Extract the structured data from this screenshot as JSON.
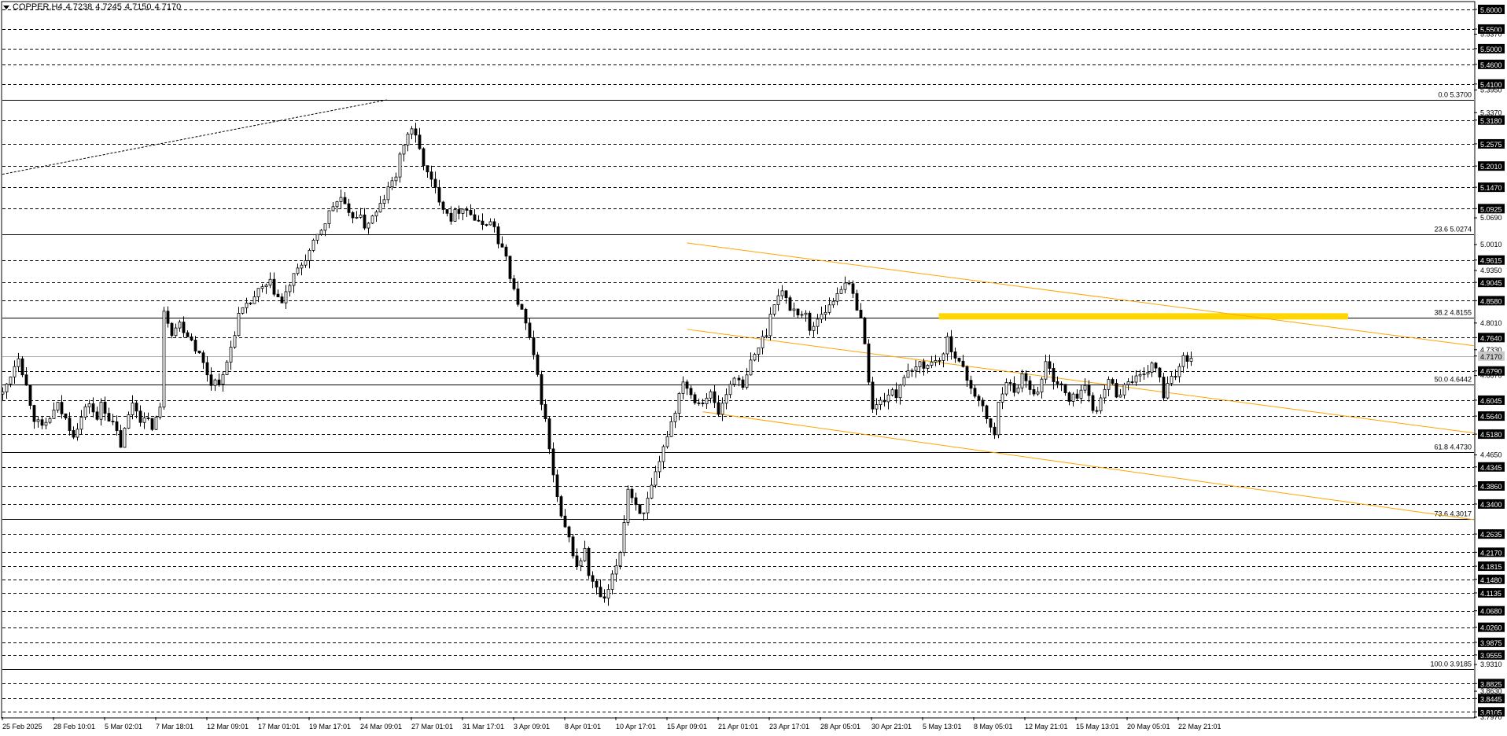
{
  "header": {
    "symbol": "COPPER,H4",
    "open": "4.7238",
    "high": "4.7245",
    "low": "4.7150",
    "close": "4.7170"
  },
  "chart_data": {
    "type": "candlestick",
    "symbol": "COPPER",
    "timeframe": "H4",
    "ylim": [
      3.797,
      5.618
    ],
    "grid": "dashed horizontal",
    "colors": {
      "candle": "#000000",
      "trendline": "#ffa500",
      "zone": "#ffd700",
      "fib": "#000000"
    },
    "price_labels": [
      "5.6000",
      "5.5500",
      "5.5370",
      "5.5000",
      "5.4600",
      "5.4100",
      "5.3950",
      "5.3370",
      "5.3180",
      "5.2575",
      "5.2010",
      "5.1470",
      "5.0925",
      "5.0690",
      "5.0010",
      "4.9615",
      "4.9350",
      "4.9045",
      "4.8580",
      "4.8010",
      "4.7640",
      "4.7330",
      "4.7170",
      "4.6790",
      "4.6670",
      "4.6045",
      "4.5640",
      "4.5180",
      "4.4650",
      "4.4345",
      "4.3860",
      "4.3400",
      "4.2635",
      "4.2170",
      "4.1815",
      "4.1480",
      "4.1135",
      "4.0680",
      "4.0260",
      "3.9875",
      "3.9555",
      "3.9310",
      "3.8825",
      "3.8630",
      "3.8445",
      "3.8105",
      "3.7970"
    ],
    "grid_levels": [
      5.6,
      5.55,
      5.5,
      5.46,
      5.41,
      5.318,
      5.2575,
      5.201,
      5.147,
      5.0925,
      4.9615,
      4.9045,
      4.858,
      4.764,
      4.679,
      4.6045,
      4.564,
      4.518,
      4.4345,
      4.386,
      4.34,
      4.2635,
      4.217,
      4.1815,
      4.148,
      4.1135,
      4.068,
      4.026,
      3.9875,
      3.9555,
      3.8825,
      3.8445,
      3.8105
    ],
    "current_price": {
      "label": "4.7170",
      "value": 4.717
    },
    "fibonacci": [
      {
        "label": "0.0 5.3700",
        "value": 5.37
      },
      {
        "label": "23.6 5.0274",
        "value": 5.0274
      },
      {
        "label": "38.2 4.8155",
        "value": 4.8155
      },
      {
        "label": "50.0 4.6442",
        "value": 4.6442
      },
      {
        "label": "61.8 4.4730",
        "value": 4.473
      },
      {
        "label": "73.6 4.3017",
        "value": 4.3017
      },
      {
        "label": "100.0 3.9185",
        "value": 3.9185
      }
    ],
    "x_ticks": [
      "25 Feb 2025",
      "28 Feb 10:01",
      "5 Mar 02:01",
      "7 Mar 18:01",
      "12 Mar 09:01",
      "17 Mar 01:01",
      "19 Mar 17:01",
      "24 Mar 09:01",
      "27 Mar 01:01",
      "31 Mar 17:01",
      "3 Apr 09:01",
      "8 Apr 01:01",
      "10 Apr 17:01",
      "15 Apr 09:01",
      "21 Apr 01:01",
      "23 Apr 17:01",
      "28 Apr 05:01",
      "30 Apr 21:01",
      "5 May 13:01",
      "8 May 05:01",
      "12 May 21:01",
      "15 May 13:01",
      "20 May 05:01",
      "22 May 21:01"
    ],
    "price_path": [
      [
        0,
        4.62
      ],
      [
        4,
        4.72
      ],
      [
        8,
        4.56
      ],
      [
        10,
        4.53
      ],
      [
        14,
        4.59
      ],
      [
        18,
        4.52
      ],
      [
        22,
        4.6
      ],
      [
        24,
        4.55
      ],
      [
        25,
        4.6
      ],
      [
        27,
        4.56
      ],
      [
        29,
        4.52
      ],
      [
        30,
        4.49
      ],
      [
        33,
        4.6
      ],
      [
        35,
        4.56
      ],
      [
        38,
        4.54
      ],
      [
        40,
        4.58
      ],
      [
        41,
        4.84
      ],
      [
        43,
        4.78
      ],
      [
        45,
        4.8
      ],
      [
        48,
        4.76
      ],
      [
        50,
        4.72
      ],
      [
        53,
        4.65
      ],
      [
        56,
        4.66
      ],
      [
        58,
        4.74
      ],
      [
        60,
        4.82
      ],
      [
        62,
        4.84
      ],
      [
        65,
        4.88
      ],
      [
        68,
        4.9
      ],
      [
        71,
        4.85
      ],
      [
        73,
        4.9
      ],
      [
        76,
        4.95
      ],
      [
        79,
        5.0
      ],
      [
        82,
        5.06
      ],
      [
        84,
        5.1
      ],
      [
        86,
        5.12
      ],
      [
        88,
        5.07
      ],
      [
        90,
        5.08
      ],
      [
        92,
        5.05
      ],
      [
        95,
        5.08
      ],
      [
        97,
        5.12
      ],
      [
        100,
        5.18
      ],
      [
        102,
        5.26
      ],
      [
        104,
        5.3
      ],
      [
        106,
        5.24
      ],
      [
        108,
        5.18
      ],
      [
        110,
        5.14
      ],
      [
        112,
        5.1
      ],
      [
        114,
        5.07
      ],
      [
        117,
        5.1
      ],
      [
        119,
        5.08
      ],
      [
        121,
        5.05
      ],
      [
        123,
        5.06
      ],
      [
        125,
        5.05
      ],
      [
        126,
        5.0
      ],
      [
        128,
        4.97
      ],
      [
        130,
        4.88
      ],
      [
        132,
        4.83
      ],
      [
        134,
        4.76
      ],
      [
        136,
        4.66
      ],
      [
        138,
        4.55
      ],
      [
        140,
        4.41
      ],
      [
        142,
        4.3
      ],
      [
        144,
        4.25
      ],
      [
        146,
        4.18
      ],
      [
        148,
        4.22
      ],
      [
        149,
        4.16
      ],
      [
        151,
        4.12
      ],
      [
        153,
        4.09
      ],
      [
        155,
        4.15
      ],
      [
        157,
        4.22
      ],
      [
        159,
        4.38
      ],
      [
        161,
        4.34
      ],
      [
        163,
        4.31
      ],
      [
        165,
        4.38
      ],
      [
        167,
        4.44
      ],
      [
        169,
        4.52
      ],
      [
        171,
        4.58
      ],
      [
        173,
        4.66
      ],
      [
        175,
        4.62
      ],
      [
        177,
        4.6
      ],
      [
        180,
        4.62
      ],
      [
        182,
        4.57
      ],
      [
        184,
        4.62
      ],
      [
        186,
        4.67
      ],
      [
        188,
        4.63
      ],
      [
        190,
        4.7
      ],
      [
        192,
        4.74
      ],
      [
        194,
        4.78
      ],
      [
        196,
        4.86
      ],
      [
        198,
        4.88
      ],
      [
        200,
        4.84
      ],
      [
        202,
        4.83
      ],
      [
        204,
        4.82
      ],
      [
        205,
        4.78
      ],
      [
        208,
        4.83
      ],
      [
        210,
        4.84
      ],
      [
        212,
        4.88
      ],
      [
        214,
        4.91
      ],
      [
        216,
        4.87
      ],
      [
        218,
        4.82
      ],
      [
        219,
        4.74
      ],
      [
        221,
        4.58
      ],
      [
        223,
        4.6
      ],
      [
        225,
        4.62
      ],
      [
        227,
        4.62
      ],
      [
        229,
        4.67
      ],
      [
        231,
        4.67
      ],
      [
        233,
        4.7
      ],
      [
        235,
        4.69
      ],
      [
        237,
        4.71
      ],
      [
        239,
        4.71
      ],
      [
        240,
        4.76
      ],
      [
        242,
        4.72
      ],
      [
        244,
        4.68
      ],
      [
        246,
        4.64
      ],
      [
        248,
        4.6
      ],
      [
        250,
        4.56
      ],
      [
        252,
        4.51
      ],
      [
        253,
        4.6
      ],
      [
        255,
        4.66
      ],
      [
        257,
        4.62
      ],
      [
        259,
        4.67
      ],
      [
        261,
        4.64
      ],
      [
        263,
        4.62
      ],
      [
        265,
        4.7
      ],
      [
        267,
        4.66
      ],
      [
        269,
        4.64
      ],
      [
        271,
        4.6
      ],
      [
        273,
        4.62
      ],
      [
        275,
        4.64
      ],
      [
        277,
        4.58
      ],
      [
        279,
        4.6
      ],
      [
        281,
        4.66
      ],
      [
        283,
        4.62
      ],
      [
        285,
        4.64
      ],
      [
        287,
        4.66
      ],
      [
        290,
        4.66
      ],
      [
        292,
        4.7
      ],
      [
        294,
        4.66
      ],
      [
        295,
        4.61
      ],
      [
        296,
        4.64
      ],
      [
        298,
        4.67
      ],
      [
        300,
        4.72
      ],
      [
        302,
        4.71
      ]
    ],
    "trendlines": [
      {
        "from": [
          174,
          5.005
        ],
        "to": [
          374,
          4.743
        ]
      },
      {
        "from": [
          174,
          4.785
        ],
        "to": [
          374,
          4.521
        ]
      },
      {
        "from": [
          178,
          4.575
        ],
        "to": [
          374,
          4.3
        ]
      },
      {
        "from": [
          0,
          5.18
        ],
        "to": [
          98,
          5.37
        ]
      }
    ],
    "resistance_zone": {
      "x": [
        238,
        342
      ],
      "y": [
        4.81,
        4.826
      ]
    },
    "x_range": [
      0,
      374
    ]
  }
}
